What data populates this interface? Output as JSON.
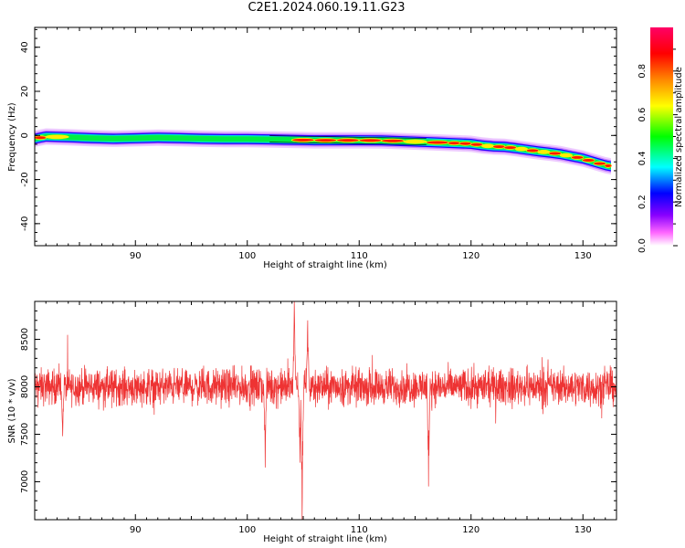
{
  "title": "C2E1.2024.060.19.11.G23",
  "chart_data": [
    {
      "type": "heatmap",
      "title": "",
      "xlabel": "Height of straight line (km)",
      "ylabel": "Frequency (Hz)",
      "xlim": [
        81,
        133
      ],
      "ylim": [
        -50,
        49
      ],
      "xticks": [
        90,
        100,
        110,
        120,
        130
      ],
      "yticks": [
        -40,
        -20,
        0,
        20,
        40
      ],
      "colorbar": {
        "label": "Normalized spectral amplitude",
        "range": [
          0,
          1
        ],
        "ticks": [
          0.0,
          0.2,
          0.4,
          0.6,
          0.8
        ],
        "colormap": "hsv"
      },
      "ridge": {
        "x": [
          81,
          82,
          84,
          86,
          88,
          90,
          92,
          94,
          96,
          98,
          100,
          102,
          104,
          106,
          108,
          110,
          112,
          114,
          116,
          118,
          119,
          120,
          121,
          122,
          123,
          124,
          125,
          126,
          127,
          128,
          129,
          130,
          131,
          132,
          132.5
        ],
        "freq": [
          -1.5,
          -0.5,
          -0.8,
          -1.2,
          -1.5,
          -1.3,
          -1.0,
          -1.2,
          -1.5,
          -1.6,
          -1.6,
          -1.8,
          -2.0,
          -2.2,
          -2.2,
          -2.2,
          -2.3,
          -2.6,
          -3.0,
          -3.4,
          -3.6,
          -3.8,
          -4.5,
          -5.0,
          -5.2,
          -5.8,
          -6.5,
          -7.2,
          -7.8,
          -8.5,
          -9.5,
          -10.5,
          -12.0,
          -13.5,
          -14.0
        ],
        "amplitude": [
          0.85,
          0.8,
          0.55,
          0.5,
          0.5,
          0.5,
          0.55,
          0.5,
          0.5,
          0.5,
          0.55,
          0.6,
          0.9,
          0.95,
          0.95,
          0.95,
          0.95,
          0.8,
          0.85,
          0.95,
          0.95,
          0.95,
          0.7,
          0.95,
          0.9,
          0.7,
          0.95,
          0.7,
          0.9,
          0.7,
          0.95,
          0.95,
          0.95,
          0.95,
          0.95
        ]
      }
    },
    {
      "type": "line",
      "title": "",
      "xlabel": "Height of straight line (km)",
      "ylabel": "SNR (10 * v/v)",
      "xlim": [
        81,
        133
      ],
      "ylim": [
        6600,
        8900
      ],
      "xticks": [
        90,
        100,
        110,
        120,
        130
      ],
      "yticks": [
        7000,
        7500,
        8000,
        8500
      ],
      "color": "#ee3333",
      "baseline": 8000,
      "noise_amplitude": 160,
      "features": [
        {
          "x": 83.5,
          "y": 7480
        },
        {
          "x": 101.6,
          "y": 7150
        },
        {
          "x": 104.2,
          "y": 8900
        },
        {
          "x": 104.7,
          "y": 7200
        },
        {
          "x": 104.9,
          "y": 6600
        },
        {
          "x": 105.4,
          "y": 8700
        },
        {
          "x": 116.2,
          "y": 6950
        }
      ]
    }
  ]
}
